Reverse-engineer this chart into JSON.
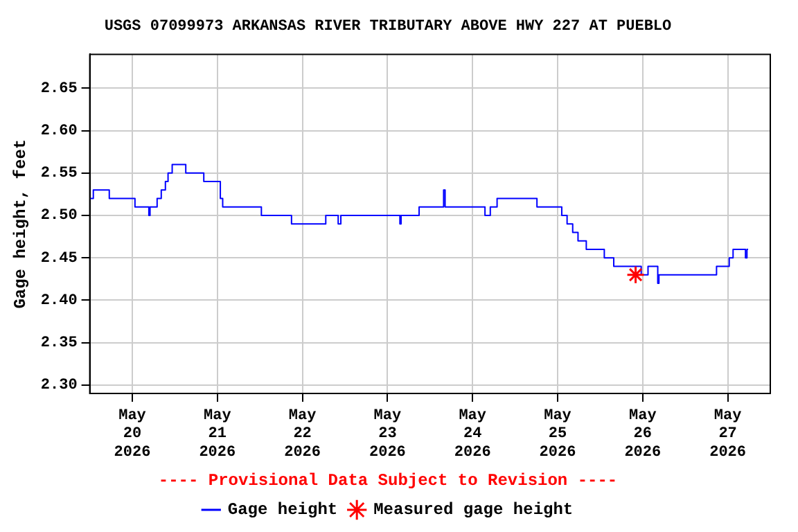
{
  "chart_data": {
    "type": "step",
    "title": "USGS 07099973 ARKANSAS RIVER TRIBUTARY ABOVE HWY 227 AT PUEBLO",
    "ylabel": "Gage height, feet",
    "annotations": [
      "---- Provisional Data Subject to Revision ----"
    ],
    "series": [
      {
        "name": "Gage height",
        "color": "#0000ff",
        "x": [
          "2026-05-19T12:00",
          "2026-05-19T13:00",
          "2026-05-19T16:30",
          "2026-05-19T17:30",
          "2026-05-20T00:30",
          "2026-05-20T00:45",
          "2026-05-20T04:15",
          "2026-05-20T04:40",
          "2026-05-20T05:00",
          "2026-05-20T06:35",
          "2026-05-20T07:00",
          "2026-05-20T08:10",
          "2026-05-20T09:20",
          "2026-05-20T10:05",
          "2026-05-20T11:15",
          "2026-05-20T13:55",
          "2026-05-20T15:05",
          "2026-05-20T19:45",
          "2026-05-20T20:10",
          "2026-05-20T23:35",
          "2026-05-21T00:50",
          "2026-05-21T01:30",
          "2026-05-21T12:00",
          "2026-05-21T12:25",
          "2026-05-21T19:00",
          "2026-05-21T20:55",
          "2026-05-22T04:40",
          "2026-05-22T06:35",
          "2026-05-22T10:05",
          "2026-05-22T10:50",
          "2026-05-23T03:05",
          "2026-05-23T03:30",
          "2026-05-23T03:50",
          "2026-05-23T08:30",
          "2026-05-23T08:55",
          "2026-05-23T15:30",
          "2026-05-23T15:50",
          "2026-05-23T16:15",
          "2026-05-24T03:05",
          "2026-05-24T03:30",
          "2026-05-24T05:00",
          "2026-05-24T06:55",
          "2026-05-24T17:25",
          "2026-05-24T18:10",
          "2026-05-25T00:25",
          "2026-05-25T01:10",
          "2026-05-25T02:40",
          "2026-05-25T04:15",
          "2026-05-25T05:45",
          "2026-05-25T08:05",
          "2026-05-25T11:10",
          "2026-05-25T13:10",
          "2026-05-25T15:50",
          "2026-05-25T21:40",
          "2026-05-25T23:35",
          "2026-05-26T01:30",
          "2026-05-26T03:50",
          "2026-05-26T04:15",
          "2026-05-26T04:35",
          "2026-05-26T20:05",
          "2026-05-26T20:50",
          "2026-05-26T23:35",
          "2026-05-27T00:25",
          "2026-05-27T01:30",
          "2026-05-27T04:35",
          "2026-05-27T05:00",
          "2026-05-27T05:25",
          "2026-05-27T05:45"
        ],
        "values": [
          2.52,
          2.53,
          2.53,
          2.52,
          2.52,
          2.51,
          2.51,
          2.5,
          2.51,
          2.51,
          2.52,
          2.53,
          2.54,
          2.55,
          2.56,
          2.56,
          2.55,
          2.55,
          2.54,
          2.54,
          2.52,
          2.51,
          2.51,
          2.5,
          2.5,
          2.49,
          2.49,
          2.5,
          2.49,
          2.5,
          2.5,
          2.49,
          2.5,
          2.5,
          2.51,
          2.51,
          2.53,
          2.51,
          2.51,
          2.5,
          2.51,
          2.52,
          2.52,
          2.51,
          2.51,
          2.5,
          2.49,
          2.48,
          2.47,
          2.46,
          2.46,
          2.45,
          2.44,
          2.44,
          2.43,
          2.44,
          2.44,
          2.42,
          2.43,
          2.43,
          2.44,
          2.44,
          2.45,
          2.46,
          2.46,
          2.45,
          2.46,
          2.46
        ]
      },
      {
        "name": "Measured gage height",
        "type": "scatter",
        "marker": "cross",
        "color": "#ff0000",
        "x": [
          "2026-05-25T22:00"
        ],
        "values": [
          2.43
        ]
      }
    ],
    "xlim": [
      "2026-05-19T12:00",
      "2026-05-27T12:00"
    ],
    "xticks": [
      {
        "value": "2026-05-20",
        "label": "May\n20\n2026"
      },
      {
        "value": "2026-05-21",
        "label": "May\n21\n2026"
      },
      {
        "value": "2026-05-22",
        "label": "May\n22\n2026"
      },
      {
        "value": "2026-05-23",
        "label": "May\n23\n2026"
      },
      {
        "value": "2026-05-24",
        "label": "May\n24\n2026"
      },
      {
        "value": "2026-05-25",
        "label": "May\n25\n2026"
      },
      {
        "value": "2026-05-26",
        "label": "May\n26\n2026"
      },
      {
        "value": "2026-05-27",
        "label": "May\n27\n2026"
      }
    ],
    "ylim": [
      2.29,
      2.69
    ],
    "yticks": [
      {
        "value": 2.3,
        "label": "2.30"
      },
      {
        "value": 2.35,
        "label": "2.35"
      },
      {
        "value": 2.4,
        "label": "2.40"
      },
      {
        "value": 2.45,
        "label": "2.45"
      },
      {
        "value": 2.5,
        "label": "2.50"
      },
      {
        "value": 2.55,
        "label": "2.55"
      },
      {
        "value": 2.6,
        "label": "2.60"
      },
      {
        "value": 2.65,
        "label": "2.65"
      }
    ],
    "grid": true,
    "legend": "bottom",
    "marker": "none",
    "line_style": "solid"
  }
}
